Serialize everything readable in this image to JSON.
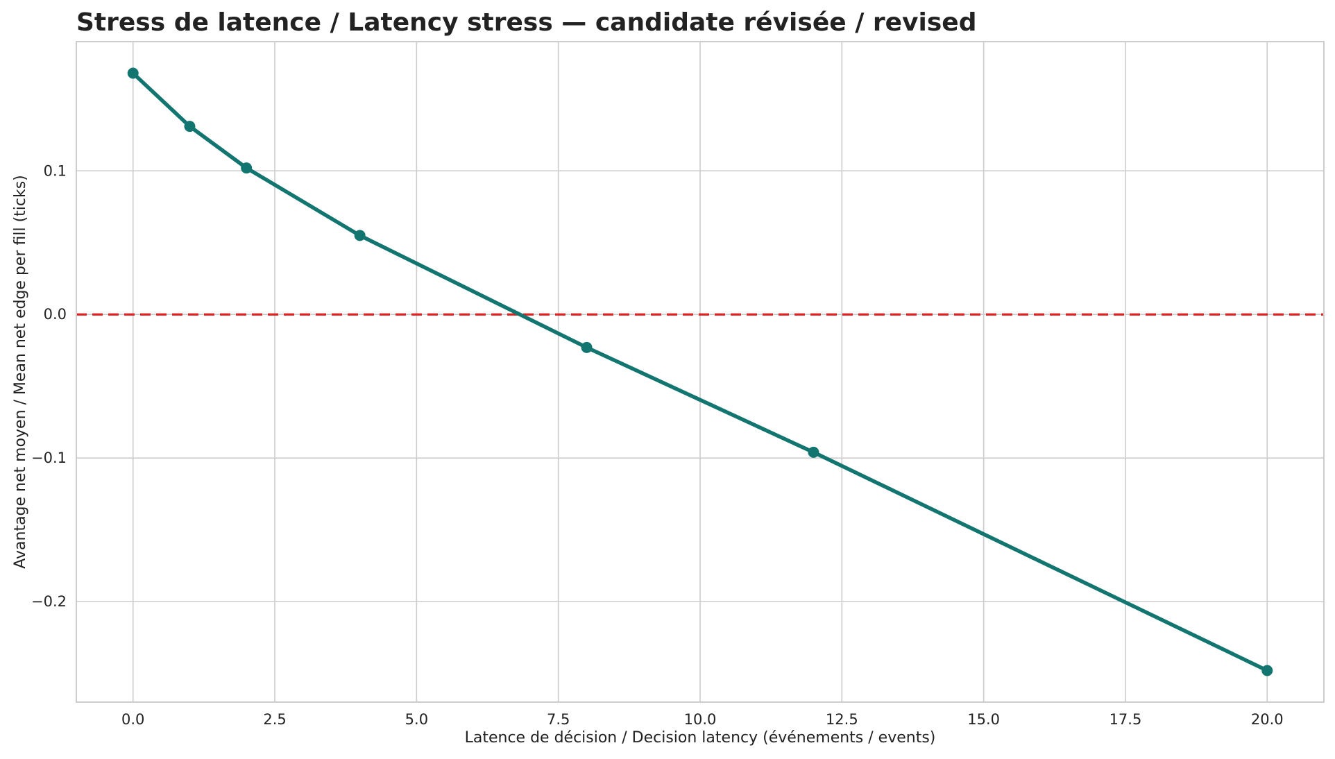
{
  "chart_data": {
    "type": "line",
    "title": "Stress de latence / Latency stress — candidate révisée / revised",
    "xlabel": "Latence de décision / Decision latency (événements / events)",
    "ylabel": "Avantage net moyen / Mean net edge per fill (ticks)",
    "xlim": [
      -1.0,
      21.0
    ],
    "ylim": [
      -0.27,
      0.19
    ],
    "xticks": [
      0.0,
      2.5,
      5.0,
      7.5,
      10.0,
      12.5,
      15.0,
      17.5,
      20.0
    ],
    "xtick_labels": [
      "0.0",
      "2.5",
      "5.0",
      "7.5",
      "10.0",
      "12.5",
      "15.0",
      "17.5",
      "20.0"
    ],
    "yticks": [
      0.1,
      0.0,
      -0.1,
      -0.2
    ],
    "ytick_labels": [
      "0.1",
      "0.0",
      "−0.1",
      "−0.2"
    ],
    "grid": true,
    "reference_line": {
      "y": 0.0,
      "style": "dashed",
      "color": "#dd2222"
    },
    "series": [
      {
        "color": "#137570",
        "marker": "circle",
        "x": [
          0,
          1,
          2,
          4,
          8,
          12,
          20
        ],
        "y": [
          0.168,
          0.131,
          0.102,
          0.055,
          -0.023,
          -0.096,
          -0.248
        ]
      }
    ]
  }
}
